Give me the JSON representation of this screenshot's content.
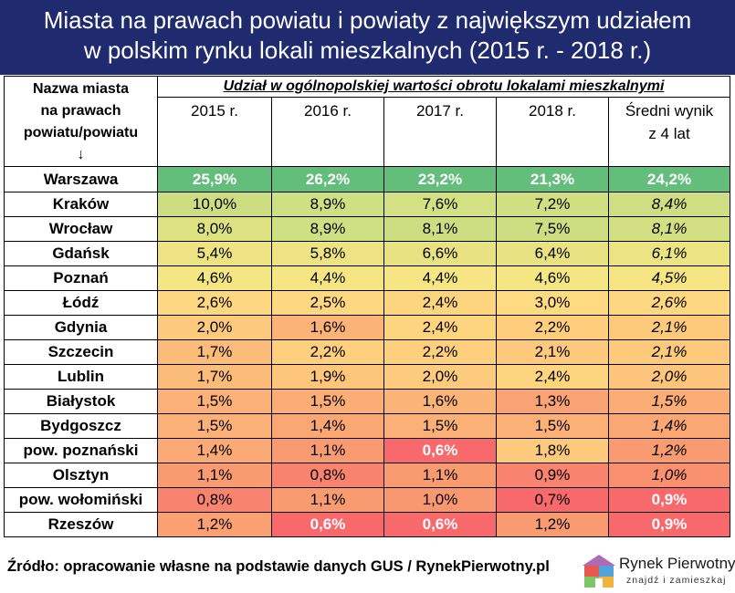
{
  "title": {
    "line1": "Miasta na prawach powiatu i powiaty z największym udziałem",
    "line2": "w polskim rynku lokali mieszkalnych (2015 r. - 2018 r.)"
  },
  "table": {
    "name_header": {
      "line1": "Nazwa miasta",
      "line2": "na prawach",
      "line3": "powiatu/powiatu",
      "arrow": "↓"
    },
    "group_header": "Udział w ogólnopolskiej wartości obrotu lokalami mieszkalnymi",
    "year_headers": [
      "2015 r.",
      "2016 r.",
      "2017 r.",
      "2018 r."
    ],
    "avg_header": {
      "line1": "Średni wynik",
      "line2": "z 4 lat"
    },
    "rows": [
      {
        "name": "Warszawa",
        "values": [
          "25,9%",
          "26,2%",
          "23,2%",
          "21,3%",
          "24,2%"
        ]
      },
      {
        "name": "Kraków",
        "values": [
          "10,0%",
          "8,9%",
          "7,6%",
          "7,2%",
          "8,4%"
        ]
      },
      {
        "name": "Wrocław",
        "values": [
          "8,0%",
          "8,9%",
          "8,1%",
          "7,5%",
          "8,1%"
        ]
      },
      {
        "name": "Gdańsk",
        "values": [
          "5,4%",
          "5,8%",
          "6,6%",
          "6,4%",
          "6,1%"
        ]
      },
      {
        "name": "Poznań",
        "values": [
          "4,6%",
          "4,4%",
          "4,4%",
          "4,6%",
          "4,5%"
        ]
      },
      {
        "name": "Łódź",
        "values": [
          "2,6%",
          "2,5%",
          "2,4%",
          "3,0%",
          "2,6%"
        ]
      },
      {
        "name": "Gdynia",
        "values": [
          "2,0%",
          "1,6%",
          "2,4%",
          "2,2%",
          "2,1%"
        ]
      },
      {
        "name": "Szczecin",
        "values": [
          "1,7%",
          "2,2%",
          "2,2%",
          "2,1%",
          "2,1%"
        ]
      },
      {
        "name": "Lublin",
        "values": [
          "1,7%",
          "1,9%",
          "2,0%",
          "2,4%",
          "2,0%"
        ]
      },
      {
        "name": "Białystok",
        "values": [
          "1,5%",
          "1,5%",
          "1,6%",
          "1,3%",
          "1,5%"
        ]
      },
      {
        "name": "Bydgoszcz",
        "values": [
          "1,5%",
          "1,4%",
          "1,5%",
          "1,5%",
          "1,4%"
        ]
      },
      {
        "name": "pow. poznański",
        "values": [
          "1,4%",
          "1,1%",
          "0,6%",
          "1,8%",
          "1,2%"
        ]
      },
      {
        "name": "Olsztyn",
        "values": [
          "1,1%",
          "0,8%",
          "1,1%",
          "0,9%",
          "1,0%"
        ]
      },
      {
        "name": "pow. wołomiński",
        "values": [
          "0,8%",
          "1,1%",
          "1,0%",
          "0,7%",
          "0,9%"
        ]
      },
      {
        "name": "Rzeszów",
        "values": [
          "1,2%",
          "0,6%",
          "0,6%",
          "1,2%",
          "0,9%"
        ]
      }
    ],
    "cell_colors": [
      [
        "#63be7b",
        "#63be7b",
        "#63be7b",
        "#63be7b",
        "#63be7b"
      ],
      [
        "#cddd82",
        "#cde083",
        "#d3e083",
        "#d0df82",
        "#cfde82"
      ],
      [
        "#dde182",
        "#cde083",
        "#cddd82",
        "#cddd82",
        "#d2df82"
      ],
      [
        "#eee382",
        "#eee382",
        "#e8e283",
        "#e8e283",
        "#ece382"
      ],
      [
        "#f4e683",
        "#f6e683",
        "#f6e683",
        "#f4e683",
        "#f6e683"
      ],
      [
        "#fed880",
        "#fed880",
        "#fed57f",
        "#feda80",
        "#fed880"
      ],
      [
        "#fdc97c",
        "#fcb377",
        "#fed57f",
        "#fece7d",
        "#fdca7c"
      ],
      [
        "#fcbc79",
        "#fed07e",
        "#fed07e",
        "#fdc97c",
        "#fdca7c"
      ],
      [
        "#fcbc79",
        "#fdc67b",
        "#fdcb7d",
        "#fed57f",
        "#fdc57b"
      ],
      [
        "#fbb077",
        "#fbad76",
        "#fbb478",
        "#f9a273",
        "#fbad76"
      ],
      [
        "#fbb077",
        "#faa774",
        "#fbb077",
        "#fbb077",
        "#faa774"
      ],
      [
        "#fbaa75",
        "#f99b71",
        "#f8696b",
        "#fdc97c",
        "#f99b71"
      ],
      [
        "#f99b71",
        "#f8846f",
        "#f99b71",
        "#f8846f",
        "#f9916f"
      ],
      [
        "#f8846f",
        "#f99b71",
        "#f99770",
        "#f8696b",
        "#f8696b"
      ],
      [
        "#faa073",
        "#f8696b",
        "#f8696b",
        "#f99b71",
        "#f8696b"
      ]
    ],
    "white_text_cells": [
      [
        0,
        0
      ],
      [
        0,
        1
      ],
      [
        0,
        2
      ],
      [
        0,
        3
      ],
      [
        0,
        4
      ],
      [
        11,
        2
      ],
      [
        13,
        4
      ],
      [
        14,
        1
      ],
      [
        14,
        2
      ],
      [
        14,
        4
      ]
    ]
  },
  "footer": {
    "source": "Źródło: opracowanie własne na podstawie danych GUS / RynekPierwotny.pl"
  },
  "logo": {
    "name": "Rynek Pierwotny",
    "tagline": "znajdź i zamieszkaj"
  }
}
